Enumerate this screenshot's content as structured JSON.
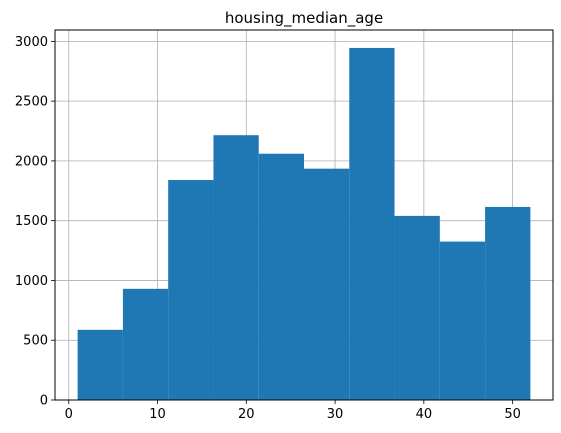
{
  "chart_data": {
    "type": "bar",
    "title": "housing_median_age",
    "xlabel": "",
    "ylabel": "",
    "grid": true,
    "bar_color": "#1f77b4",
    "xlim": [
      -1.55,
      54.55
    ],
    "ylim": [
      0,
      3095
    ],
    "x_ticks": [
      0,
      10,
      20,
      30,
      40,
      50
    ],
    "y_ticks": [
      0,
      500,
      1000,
      1500,
      2000,
      2500,
      3000
    ],
    "bin_edges": [
      1,
      6.1,
      11.2,
      16.3,
      21.4,
      26.5,
      31.6,
      36.7,
      41.8,
      46.9,
      52
    ],
    "values": [
      587,
      930,
      1840,
      2215,
      2060,
      1935,
      2945,
      1540,
      1325,
      1615
    ]
  }
}
